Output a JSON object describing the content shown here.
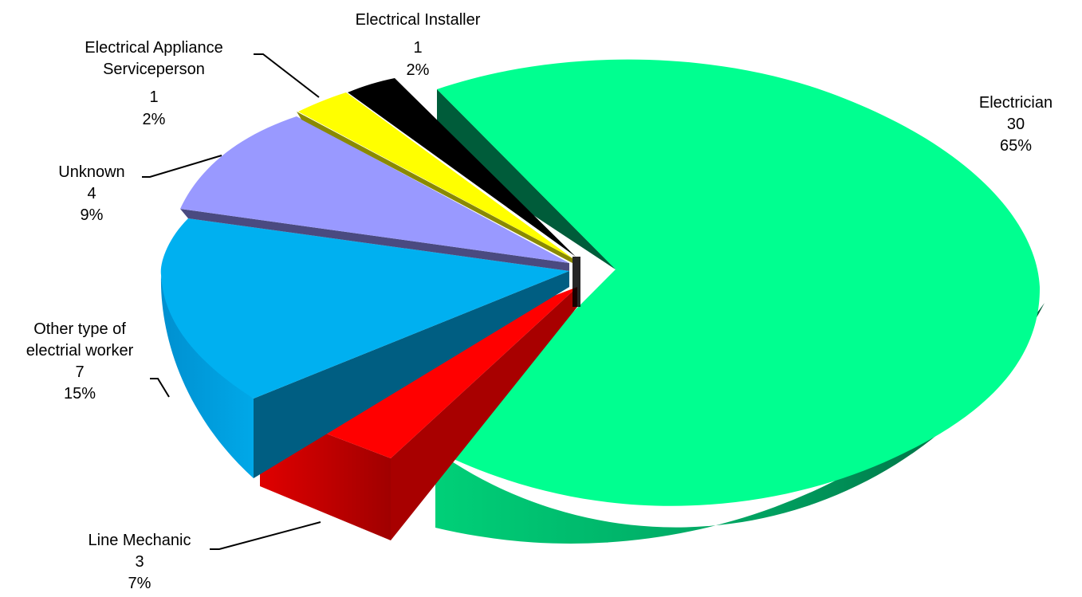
{
  "chart_data": {
    "type": "pie",
    "title": "",
    "slices": [
      {
        "label": "Electrician",
        "count_label": "30",
        "pct_label": "65%",
        "value": 30,
        "percent": 65,
        "color": "#00FF90",
        "dark": "#00754A"
      },
      {
        "label": "Line Mechanic",
        "count_label": "3",
        "pct_label": "7%",
        "value": 3,
        "percent": 7,
        "color": "#FF0000",
        "dark": "#A80000"
      },
      {
        "label": "Other type of electrial worker",
        "count_label": "7",
        "pct_label": "15%",
        "value": 7,
        "percent": 15,
        "color": "#00B0F0",
        "dark": "#0075A8"
      },
      {
        "label": "Unknown",
        "count_label": "4",
        "pct_label": "9%",
        "value": 4,
        "percent": 9,
        "color": "#9999FF",
        "dark": "#4A4A80"
      },
      {
        "label": "Electrical Appliance Serviceperson",
        "count_label": "1",
        "pct_label": "2%",
        "value": 1,
        "percent": 2,
        "color": "#FFFF00",
        "dark": "#8A8A00"
      },
      {
        "label": "Electrical Installer",
        "count_label": "1",
        "pct_label": "2%",
        "value": 1,
        "percent": 2,
        "color": "#000000",
        "dark": "#000000"
      }
    ],
    "style": "3d-exploded",
    "legend": "none"
  }
}
